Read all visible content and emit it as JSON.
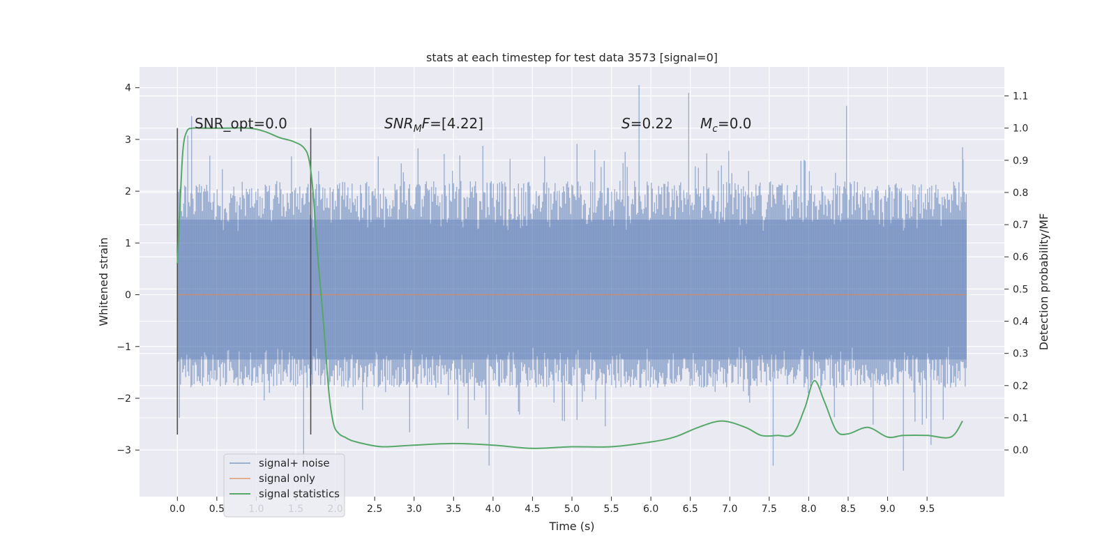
{
  "chart_data": {
    "type": "line",
    "title": "stats at each timestep for test data 3573 [signal=0]",
    "xlabel": "Time (s)",
    "ylabel": "Whitened strain",
    "y2label": "Detection probability/MF",
    "xlim": [
      -0.48,
      10.48
    ],
    "ylim": [
      -3.9,
      4.4
    ],
    "y2lim": [
      -0.145,
      1.19
    ],
    "xticks": [
      "0.0",
      "0.5",
      "1.0",
      "1.5",
      "2.0",
      "2.5",
      "3.0",
      "3.5",
      "4.0",
      "4.5",
      "5.0",
      "5.5",
      "6.0",
      "6.5",
      "7.0",
      "7.5",
      "8.0",
      "8.5",
      "9.0",
      "9.5"
    ],
    "yticks": [
      "4",
      "3",
      "2",
      "1",
      "0",
      "−1",
      "−2",
      "−3"
    ],
    "y2ticks": [
      "1.1",
      "1.0",
      "0.9",
      "0.8",
      "0.7",
      "0.6",
      "0.5",
      "0.4",
      "0.3",
      "0.2",
      "0.1",
      "0.0"
    ],
    "grid": true,
    "legend_position": "lower-left",
    "legend": [
      "signal+ noise",
      "signal only",
      "signal statistics"
    ],
    "colors": {
      "background": "#eaeaf2",
      "grid": "#ffffff",
      "signal_noise": "#4c72b0",
      "signal_only": "#dd8452",
      "signal_statistics": "#55a868",
      "markers": "#4d4d4d"
    },
    "annotations": {
      "snr_opt": "SNR_opt=0.0",
      "snr_mf": "=[4.22]",
      "snr_mf_label": "SNR",
      "snr_mf_sub": "M",
      "snr_mf_tail": "F",
      "s_label": "S",
      "s_value": "=0.22",
      "mc_label": "M",
      "mc_sub": "c",
      "mc_value": "=0.0"
    },
    "marker_lines_x": [
      0.0,
      1.69
    ],
    "series": [
      {
        "name": "signal+ noise",
        "axis": "left",
        "x_range": [
          0.0,
          10.0
        ],
        "envelope_upper_typical": 2.2,
        "envelope_lower_typical": -1.8,
        "peaks": [
          [
            0.18,
            3.45
          ],
          [
            5.85,
            4.05
          ],
          [
            6.48,
            3.9
          ],
          [
            8.48,
            3.65
          ],
          [
            9.95,
            2.85
          ]
        ],
        "troughs": [
          [
            1.6,
            -3.35
          ],
          [
            3.95,
            -3.3
          ],
          [
            7.55,
            -3.3
          ],
          [
            9.2,
            -3.4
          ],
          [
            9.55,
            -2.9
          ]
        ]
      },
      {
        "name": "signal only",
        "axis": "left",
        "x": [
          0.0,
          10.0
        ],
        "y": [
          0.0,
          0.0
        ]
      },
      {
        "name": "signal statistics",
        "axis": "right",
        "x": [
          0.0,
          0.03,
          0.07,
          0.12,
          0.2,
          0.35,
          0.6,
          0.9,
          1.1,
          1.3,
          1.45,
          1.6,
          1.67,
          1.72,
          1.78,
          1.85,
          1.92,
          1.98,
          2.05,
          2.12,
          2.2,
          2.35,
          2.6,
          3.0,
          3.5,
          4.0,
          4.5,
          5.0,
          5.5,
          6.0,
          6.3,
          6.6,
          6.9,
          7.2,
          7.4,
          7.6,
          7.8,
          7.95,
          8.07,
          8.2,
          8.35,
          8.5,
          8.75,
          9.0,
          9.2,
          9.5,
          9.8,
          9.95
        ],
        "y": [
          0.58,
          0.74,
          0.93,
          0.99,
          1.0,
          1.0,
          1.0,
          1.0,
          0.99,
          0.97,
          0.96,
          0.94,
          0.9,
          0.8,
          0.6,
          0.4,
          0.18,
          0.08,
          0.05,
          0.04,
          0.03,
          0.02,
          0.01,
          0.015,
          0.02,
          0.015,
          0.005,
          0.01,
          0.01,
          0.025,
          0.04,
          0.07,
          0.09,
          0.07,
          0.045,
          0.045,
          0.05,
          0.13,
          0.215,
          0.15,
          0.06,
          0.05,
          0.07,
          0.04,
          0.045,
          0.045,
          0.04,
          0.09
        ]
      }
    ]
  }
}
